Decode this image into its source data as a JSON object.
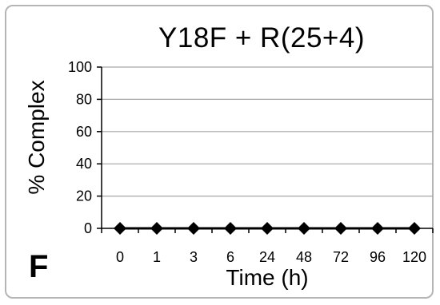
{
  "panel_label": "F",
  "chart_data": {
    "type": "line",
    "title": "Y18F + R(25+4)",
    "xlabel": "Time (h)",
    "ylabel": "% Complex",
    "categories": [
      "0",
      "1",
      "3",
      "6",
      "24",
      "48",
      "72",
      "96",
      "120"
    ],
    "series": [
      {
        "values": [
          0,
          0,
          0,
          0,
          0,
          0,
          0,
          0,
          0
        ],
        "color": "#000000",
        "marker": "diamond"
      }
    ],
    "ylim": [
      0,
      100
    ],
    "yticks": [
      0,
      20,
      40,
      60,
      80,
      100
    ],
    "grid": true,
    "legend": "none"
  }
}
